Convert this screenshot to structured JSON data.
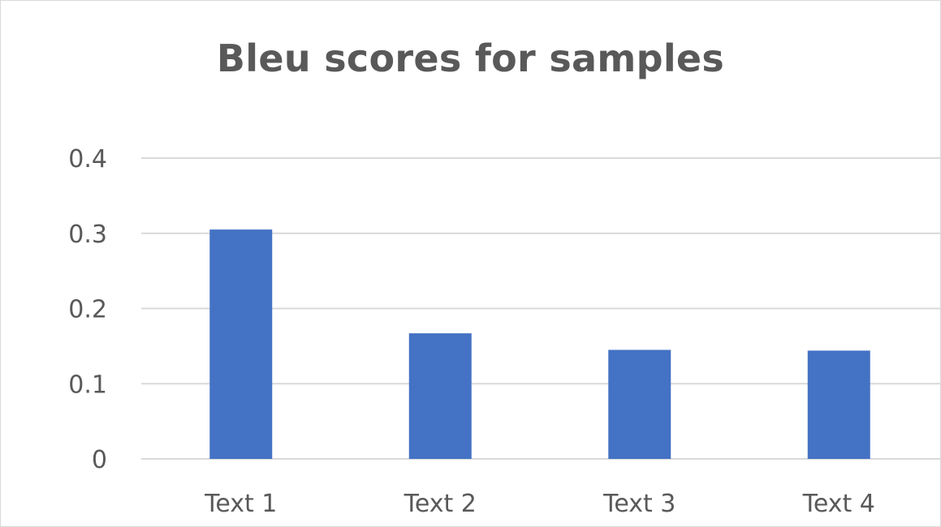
{
  "chart_data": {
    "type": "bar",
    "title": "Bleu scores for samples",
    "xlabel": "",
    "ylabel": "",
    "categories": [
      "Text 1",
      "Text 2",
      "Text 3",
      "Text 4"
    ],
    "values": [
      0.305,
      0.167,
      0.145,
      0.144
    ],
    "ylim": [
      0,
      0.4
    ],
    "yticks": [
      "0",
      "0.1",
      "0.2",
      "0.3",
      "0.4"
    ],
    "grid": true,
    "legend": "none",
    "bar_color": "#4472C4",
    "grid_color": "#D9D9D9",
    "text_color": "#595959"
  }
}
